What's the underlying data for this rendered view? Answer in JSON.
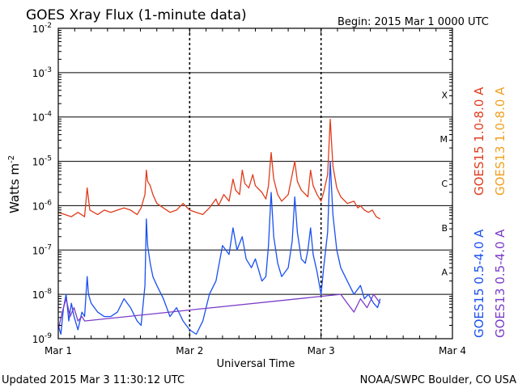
{
  "chart_data": {
    "type": "line",
    "title": "GOES Xray Flux (1-minute data)",
    "begin_label": "Begin:  2015 Mar 1 0000 UTC",
    "xlabel": "Universal Time",
    "ylabel_main": "Watts m",
    "ylabel_sup": "-2",
    "footer_left": "Updated 2015 Mar  3 11:30:12 UTC",
    "footer_right": "NOAA/SWPC Boulder, CO USA",
    "x_unit": "days since 2015 Mar 1 0000 UTC",
    "xlim": [
      0,
      3
    ],
    "ylim_log10": [
      -9,
      -2
    ],
    "y_scale": "log",
    "grid": true,
    "x_ticks": [
      {
        "value": 0,
        "label": "Mar 1"
      },
      {
        "value": 1,
        "label": "Mar 2"
      },
      {
        "value": 2,
        "label": "Mar 3"
      },
      {
        "value": 3,
        "label": "Mar 4"
      }
    ],
    "y_ticks": [
      {
        "exp": -9,
        "base": "10",
        "sup": "-9"
      },
      {
        "exp": -8,
        "base": "10",
        "sup": "-8"
      },
      {
        "exp": -7,
        "base": "10",
        "sup": "-7"
      },
      {
        "exp": -6,
        "base": "10",
        "sup": "-6"
      },
      {
        "exp": -5,
        "base": "10",
        "sup": "-5"
      },
      {
        "exp": -4,
        "base": "10",
        "sup": "-4"
      },
      {
        "exp": -3,
        "base": "10",
        "sup": "-3"
      },
      {
        "exp": -2,
        "base": "10",
        "sup": "-2"
      }
    ],
    "flare_classes": [
      {
        "label": "A",
        "exp": -7.5
      },
      {
        "label": "B",
        "exp": -6.5
      },
      {
        "label": "C",
        "exp": -5.5
      },
      {
        "label": "M",
        "exp": -4.5
      },
      {
        "label": "X",
        "exp": -3.5
      }
    ],
    "series": [
      {
        "name": "GOES15 1.0-8.0 A",
        "color": "#e03c1c",
        "points": [
          [
            0.0,
            -6.15
          ],
          [
            0.05,
            -6.2
          ],
          [
            0.1,
            -6.25
          ],
          [
            0.15,
            -6.15
          ],
          [
            0.2,
            -6.25
          ],
          [
            0.22,
            -5.6
          ],
          [
            0.24,
            -6.1
          ],
          [
            0.3,
            -6.2
          ],
          [
            0.35,
            -6.1
          ],
          [
            0.4,
            -6.15
          ],
          [
            0.45,
            -6.1
          ],
          [
            0.5,
            -6.05
          ],
          [
            0.55,
            -6.1
          ],
          [
            0.6,
            -6.2
          ],
          [
            0.63,
            -6.05
          ],
          [
            0.66,
            -5.75
          ],
          [
            0.67,
            -5.2
          ],
          [
            0.68,
            -5.45
          ],
          [
            0.7,
            -5.55
          ],
          [
            0.72,
            -5.75
          ],
          [
            0.75,
            -5.95
          ],
          [
            0.8,
            -6.05
          ],
          [
            0.85,
            -6.15
          ],
          [
            0.9,
            -6.1
          ],
          [
            0.95,
            -5.95
          ],
          [
            1.0,
            -6.1
          ],
          [
            1.05,
            -6.15
          ],
          [
            1.1,
            -6.2
          ],
          [
            1.15,
            -6.05
          ],
          [
            1.2,
            -5.85
          ],
          [
            1.22,
            -6.0
          ],
          [
            1.26,
            -5.75
          ],
          [
            1.3,
            -5.9
          ],
          [
            1.33,
            -5.4
          ],
          [
            1.35,
            -5.65
          ],
          [
            1.38,
            -5.75
          ],
          [
            1.4,
            -5.2
          ],
          [
            1.42,
            -5.5
          ],
          [
            1.45,
            -5.6
          ],
          [
            1.48,
            -5.3
          ],
          [
            1.5,
            -5.55
          ],
          [
            1.55,
            -5.7
          ],
          [
            1.58,
            -5.85
          ],
          [
            1.6,
            -5.55
          ],
          [
            1.62,
            -4.8
          ],
          [
            1.64,
            -5.4
          ],
          [
            1.67,
            -5.75
          ],
          [
            1.7,
            -5.9
          ],
          [
            1.75,
            -5.75
          ],
          [
            1.78,
            -5.3
          ],
          [
            1.8,
            -5.0
          ],
          [
            1.82,
            -5.45
          ],
          [
            1.85,
            -5.65
          ],
          [
            1.9,
            -5.8
          ],
          [
            1.92,
            -5.2
          ],
          [
            1.94,
            -5.55
          ],
          [
            1.97,
            -5.75
          ],
          [
            2.0,
            -5.9
          ],
          [
            2.02,
            -5.7
          ],
          [
            2.05,
            -5.3
          ],
          [
            2.07,
            -4.05
          ],
          [
            2.09,
            -5.1
          ],
          [
            2.12,
            -5.6
          ],
          [
            2.15,
            -5.8
          ],
          [
            2.2,
            -5.95
          ],
          [
            2.25,
            -5.9
          ],
          [
            2.28,
            -6.05
          ],
          [
            2.3,
            -6.0
          ],
          [
            2.33,
            -6.1
          ],
          [
            2.36,
            -6.15
          ],
          [
            2.39,
            -6.1
          ],
          [
            2.42,
            -6.25
          ],
          [
            2.45,
            -6.3
          ]
        ]
      },
      {
        "name": "GOES13 1.0-8.0 A",
        "color": "#f0a020",
        "points": []
      },
      {
        "name": "GOES15 0.5-4.0 A",
        "color": "#1a50f0",
        "points": [
          [
            0.0,
            -8.7
          ],
          [
            0.02,
            -8.9
          ],
          [
            0.04,
            -8.3
          ],
          [
            0.06,
            -8.0
          ],
          [
            0.08,
            -8.6
          ],
          [
            0.1,
            -8.2
          ],
          [
            0.12,
            -8.5
          ],
          [
            0.15,
            -8.8
          ],
          [
            0.18,
            -8.4
          ],
          [
            0.2,
            -8.5
          ],
          [
            0.22,
            -7.6
          ],
          [
            0.23,
            -8.0
          ],
          [
            0.25,
            -8.2
          ],
          [
            0.3,
            -8.4
          ],
          [
            0.35,
            -8.5
          ],
          [
            0.4,
            -8.5
          ],
          [
            0.45,
            -8.4
          ],
          [
            0.5,
            -8.1
          ],
          [
            0.55,
            -8.3
          ],
          [
            0.6,
            -8.6
          ],
          [
            0.63,
            -8.7
          ],
          [
            0.66,
            -7.8
          ],
          [
            0.67,
            -6.3
          ],
          [
            0.68,
            -6.9
          ],
          [
            0.7,
            -7.3
          ],
          [
            0.72,
            -7.6
          ],
          [
            0.75,
            -7.8
          ],
          [
            0.8,
            -8.1
          ],
          [
            0.85,
            -8.5
          ],
          [
            0.9,
            -8.3
          ],
          [
            0.95,
            -8.6
          ],
          [
            1.0,
            -8.8
          ],
          [
            1.05,
            -8.9
          ],
          [
            1.1,
            -8.6
          ],
          [
            1.15,
            -8.0
          ],
          [
            1.2,
            -7.7
          ],
          [
            1.25,
            -6.9
          ],
          [
            1.3,
            -7.1
          ],
          [
            1.33,
            -6.5
          ],
          [
            1.36,
            -7.0
          ],
          [
            1.4,
            -6.7
          ],
          [
            1.43,
            -7.2
          ],
          [
            1.47,
            -7.4
          ],
          [
            1.5,
            -7.2
          ],
          [
            1.55,
            -7.7
          ],
          [
            1.58,
            -7.6
          ],
          [
            1.6,
            -6.9
          ],
          [
            1.62,
            -5.7
          ],
          [
            1.64,
            -6.7
          ],
          [
            1.67,
            -7.3
          ],
          [
            1.7,
            -7.6
          ],
          [
            1.75,
            -7.4
          ],
          [
            1.78,
            -6.8
          ],
          [
            1.8,
            -5.8
          ],
          [
            1.82,
            -6.6
          ],
          [
            1.85,
            -7.2
          ],
          [
            1.88,
            -7.3
          ],
          [
            1.9,
            -7.0
          ],
          [
            1.92,
            -6.5
          ],
          [
            1.94,
            -7.1
          ],
          [
            1.97,
            -7.5
          ],
          [
            2.0,
            -8.0
          ],
          [
            2.02,
            -7.4
          ],
          [
            2.05,
            -6.6
          ],
          [
            2.07,
            -5.0
          ],
          [
            2.09,
            -6.2
          ],
          [
            2.12,
            -7.0
          ],
          [
            2.15,
            -7.4
          ],
          [
            2.2,
            -7.7
          ],
          [
            2.25,
            -8.0
          ],
          [
            2.3,
            -7.8
          ],
          [
            2.33,
            -8.1
          ],
          [
            2.36,
            -8.0
          ],
          [
            2.4,
            -8.2
          ],
          [
            2.43,
            -8.3
          ],
          [
            2.45,
            -8.1
          ]
        ]
      },
      {
        "name": "GOES13 0.5-4.0 A",
        "color": "#7a3cc8",
        "points": [
          [
            0.0,
            -8.8
          ],
          [
            0.03,
            -8.4
          ],
          [
            0.06,
            -8.1
          ],
          [
            0.09,
            -8.5
          ],
          [
            0.12,
            -8.3
          ],
          [
            0.15,
            -8.6
          ],
          [
            0.18,
            -8.5
          ],
          [
            0.2,
            -8.6
          ],
          [
            2.15,
            -8.0
          ],
          [
            2.2,
            -8.2
          ],
          [
            2.25,
            -8.4
          ],
          [
            2.3,
            -8.1
          ],
          [
            2.35,
            -8.3
          ],
          [
            2.4,
            -8.0
          ],
          [
            2.45,
            -8.2
          ]
        ]
      }
    ]
  }
}
